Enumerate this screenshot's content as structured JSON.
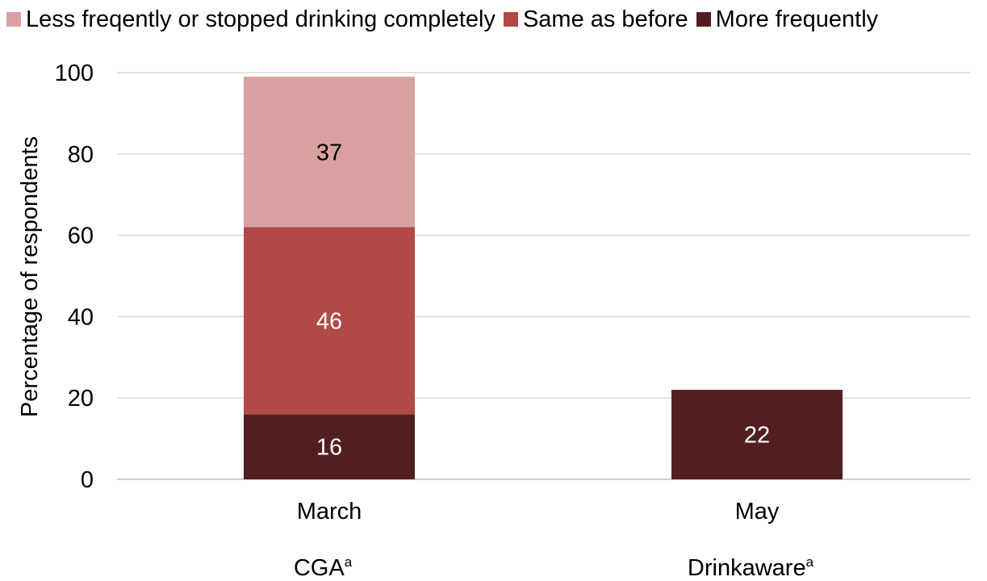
{
  "chart_data": {
    "type": "bar",
    "stacked": true,
    "categories": [
      "March",
      "May"
    ],
    "groups": [
      "CGA",
      "Drinkaware"
    ],
    "group_superscript": "a",
    "ylabel": "Percentage of respondents",
    "ylim": [
      0,
      100
    ],
    "yticks": [
      0,
      20,
      40,
      60,
      80,
      100
    ],
    "grid": true,
    "legend_position": "top",
    "series": [
      {
        "name": "More frequently",
        "values": [
          16,
          22
        ],
        "color": "#521f20",
        "label_color": "#ffffff"
      },
      {
        "name": "Same as before",
        "values": [
          46,
          null
        ],
        "color": "#b14a47",
        "label_color": "#ffffff"
      },
      {
        "name": "Less freqently or stopped drinking completely",
        "values": [
          37,
          null
        ],
        "color": "#d8a1a0",
        "label_color": "#000000"
      }
    ],
    "legend_order": [
      2,
      1,
      0
    ]
  }
}
